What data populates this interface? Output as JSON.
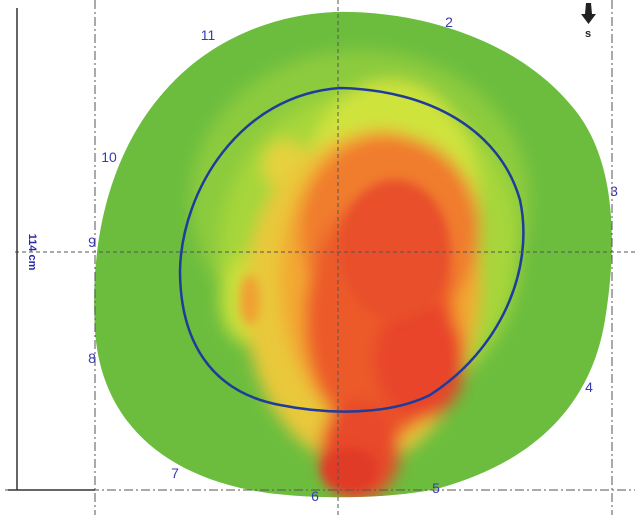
{
  "compass": {
    "south_label": "s"
  },
  "dimension": {
    "diameter_label": "114 cm"
  },
  "positions": [
    {
      "id": "pos-1",
      "label": ""
    },
    {
      "id": "pos-2",
      "label": "2"
    },
    {
      "id": "pos-3",
      "label": "3"
    },
    {
      "id": "pos-4",
      "label": "4"
    },
    {
      "id": "pos-5",
      "label": "5"
    },
    {
      "id": "pos-6",
      "label": "6"
    },
    {
      "id": "pos-7",
      "label": "7"
    },
    {
      "id": "pos-8",
      "label": "8"
    },
    {
      "id": "pos-9",
      "label": "9"
    },
    {
      "id": "pos-10",
      "label": "10"
    },
    {
      "id": "pos-11",
      "label": "11"
    }
  ],
  "colors": {
    "cool": "#6cbd3e",
    "mid": "#b8dd3c",
    "warm": "#f0a030",
    "hot": "#e8442a",
    "outline": "#1e3c9c",
    "labels": "#3a3ab0"
  }
}
